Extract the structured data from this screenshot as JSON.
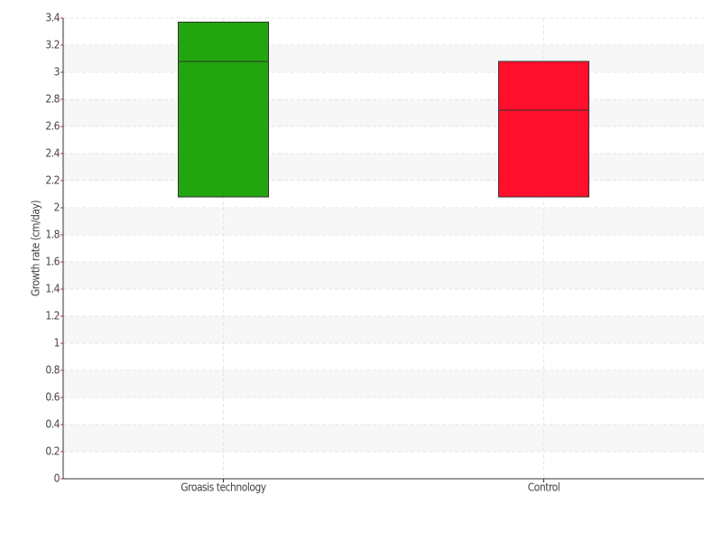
{
  "chart_data": {
    "type": "box",
    "ylabel": "Growth rate (cm/day)",
    "categories": [
      "Groasis technology",
      "Control"
    ],
    "low": [
      2.08,
      2.08
    ],
    "high": [
      3.37,
      3.08
    ],
    "median": [
      3.08,
      2.72
    ],
    "colors": [
      "#22a60f",
      "#ff0f2b"
    ],
    "ylim": [
      0,
      3.4
    ],
    "yticks": [
      0,
      0.2,
      0.4,
      0.6,
      0.8,
      1,
      1.2,
      1.4,
      1.6,
      1.8,
      2,
      2.2,
      2.4,
      2.6,
      2.8,
      3,
      3.2,
      3.4
    ],
    "grid": true
  }
}
